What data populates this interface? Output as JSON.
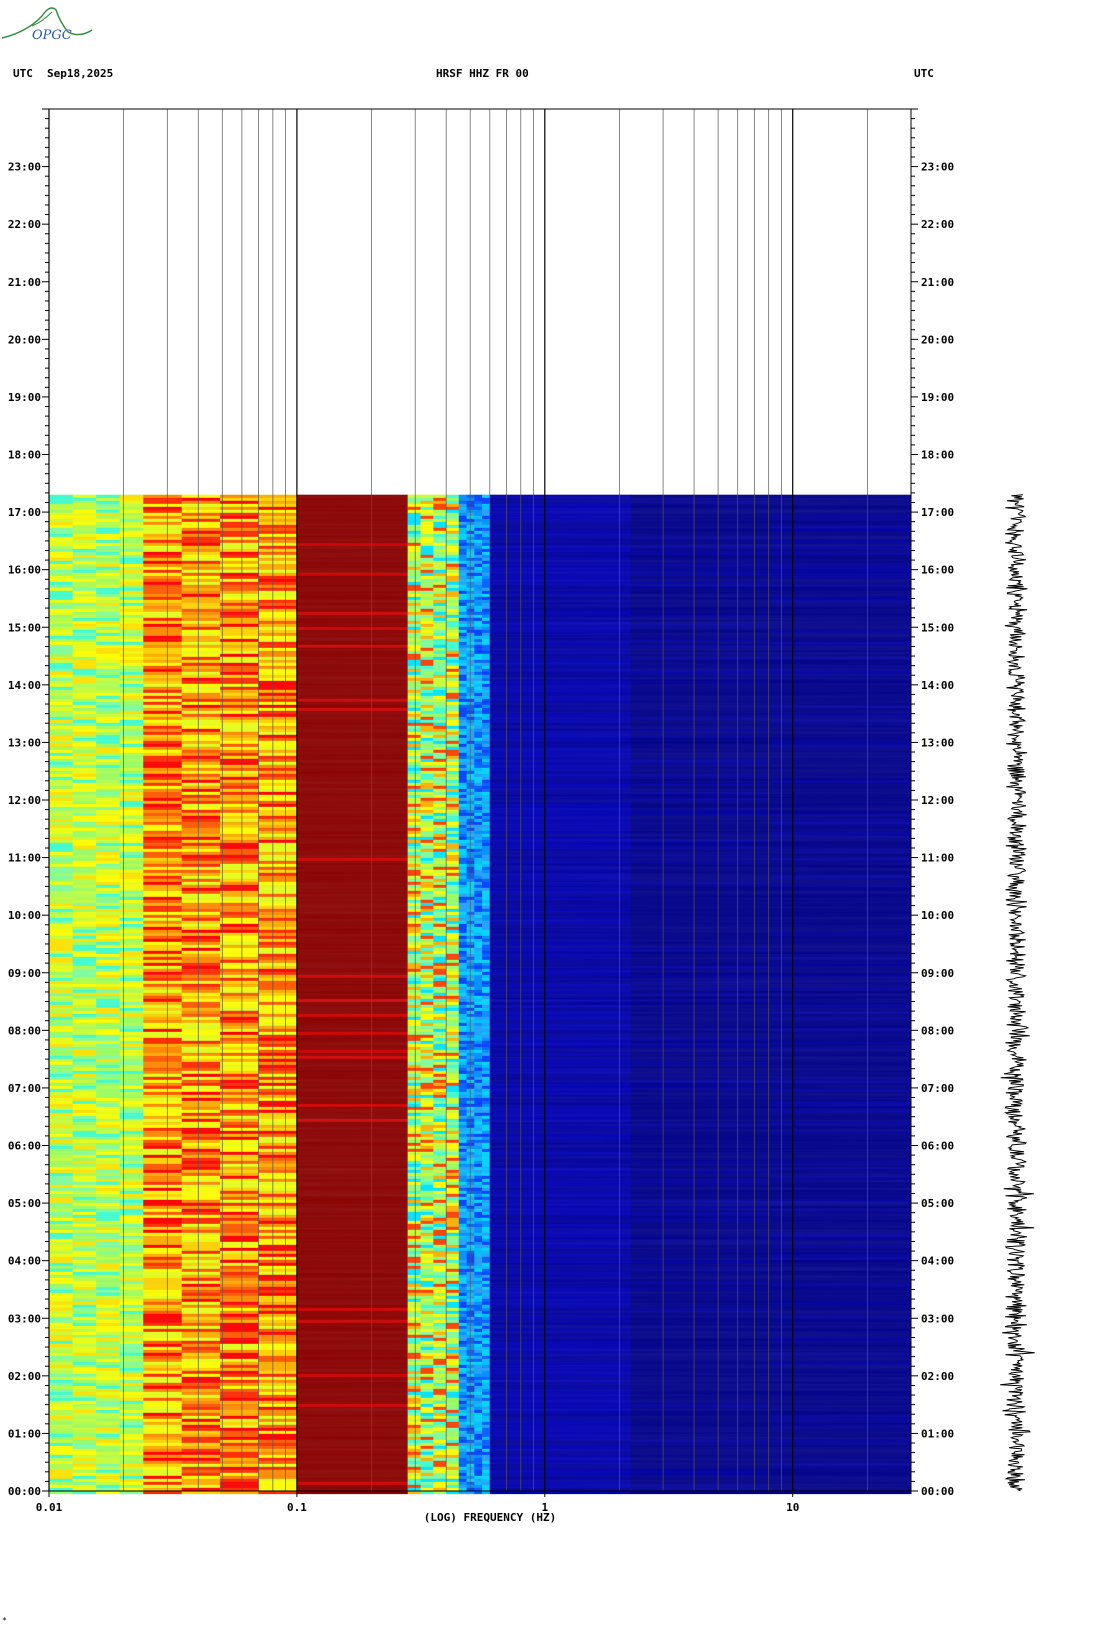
{
  "header": {
    "left_tz": "UTC",
    "date": "Sep18,2025",
    "station": "HRSF HHZ FR 00",
    "right_tz": "UTC"
  },
  "logo": {
    "text": "OPGC"
  },
  "footer": {
    "mark": "*"
  },
  "chart_data": {
    "type": "heatmap",
    "title": "HRSF HHZ FR 00",
    "xlabel": "(LOG) FREQUENCY (HZ)",
    "x_scale": "log",
    "xlim": [
      0.01,
      30
    ],
    "x_ticks": [
      {
        "value": 0.01,
        "label": "0.01"
      },
      {
        "value": 0.1,
        "label": "0.1"
      },
      {
        "value": 1,
        "label": "1"
      },
      {
        "value": 10,
        "label": "10"
      }
    ],
    "ylabel_left": "UTC",
    "ylabel_right": "UTC",
    "ylim_hours": [
      0,
      24
    ],
    "y_ticks_left": [
      "00:00",
      "01:00",
      "02:00",
      "03:00",
      "04:00",
      "05:00",
      "06:00",
      "07:00",
      "08:00",
      "09:00",
      "10:00",
      "11:00",
      "12:00",
      "13:00",
      "14:00",
      "15:00",
      "16:00",
      "17:00",
      "18:00",
      "19:00",
      "20:00",
      "21:00",
      "22:00",
      "23:00"
    ],
    "y_ticks_right": [
      "00:00",
      "01:00",
      "02:00",
      "03:00",
      "04:00",
      "05:00",
      "06:00",
      "07:00",
      "08:00",
      "09:00",
      "10:00",
      "11:00",
      "12:00",
      "13:00",
      "14:00",
      "15:00",
      "16:00",
      "17:00",
      "18:00",
      "19:00",
      "20:00",
      "21:00",
      "22:00",
      "23:00"
    ],
    "data_end_hour": 17.3,
    "colormap": [
      "#00008b",
      "#0000ff",
      "#00bfff",
      "#7fffd4",
      "#ffff00",
      "#ffa500",
      "#ff0000",
      "#8b0000"
    ],
    "frequency_bands": [
      {
        "f_from": 0.01,
        "f_to": 0.024,
        "level": "green-yellow"
      },
      {
        "f_from": 0.024,
        "f_to": 0.1,
        "level": "yellow-orange-red"
      },
      {
        "f_from": 0.1,
        "f_to": 0.28,
        "level": "dark-red"
      },
      {
        "f_from": 0.28,
        "f_to": 0.45,
        "level": "yellow-cyan"
      },
      {
        "f_from": 0.45,
        "f_to": 0.6,
        "level": "cyan-blue"
      },
      {
        "f_from": 0.6,
        "f_to": 30,
        "level": "dark-blue"
      }
    ]
  }
}
